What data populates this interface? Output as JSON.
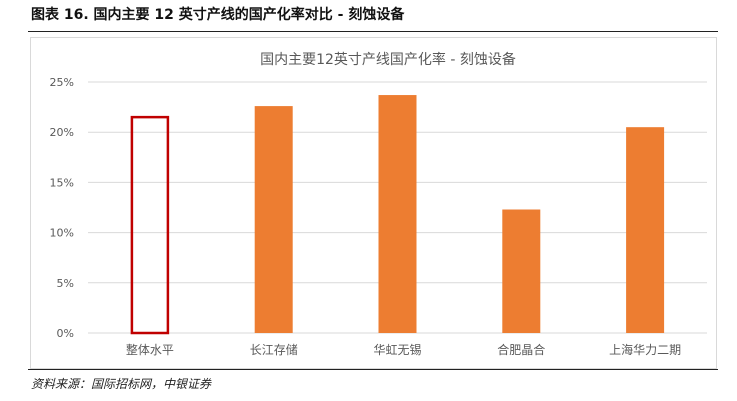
{
  "figure": {
    "title": "图表 16. 国内主要 12 英寸产线的国产化率对比 - 刻蚀设备",
    "source": "资料来源：国际招标网，中银证券"
  },
  "colors": {
    "bar": "#ED7D31",
    "highlight_outline": "#C00000",
    "grid": "#d9d9d9",
    "axis_text": "#595959"
  },
  "chart_data": {
    "type": "bar",
    "title": "国内主要12英寸产线国产化率 - 刻蚀设备",
    "xlabel": "",
    "ylabel": "",
    "categories": [
      "整体水平",
      "长江存储",
      "华虹无锡",
      "合肥晶合",
      "上海华力二期"
    ],
    "values": [
      21.5,
      22.6,
      23.7,
      12.3,
      20.5
    ],
    "highlight": [
      true,
      false,
      false,
      false,
      false
    ],
    "ylim": [
      0,
      25
    ],
    "yticks": [
      0,
      5,
      10,
      15,
      20,
      25
    ],
    "ytick_labels": [
      "0%",
      "5%",
      "10%",
      "15%",
      "20%",
      "25%"
    ],
    "grid": true,
    "legend": "none"
  }
}
